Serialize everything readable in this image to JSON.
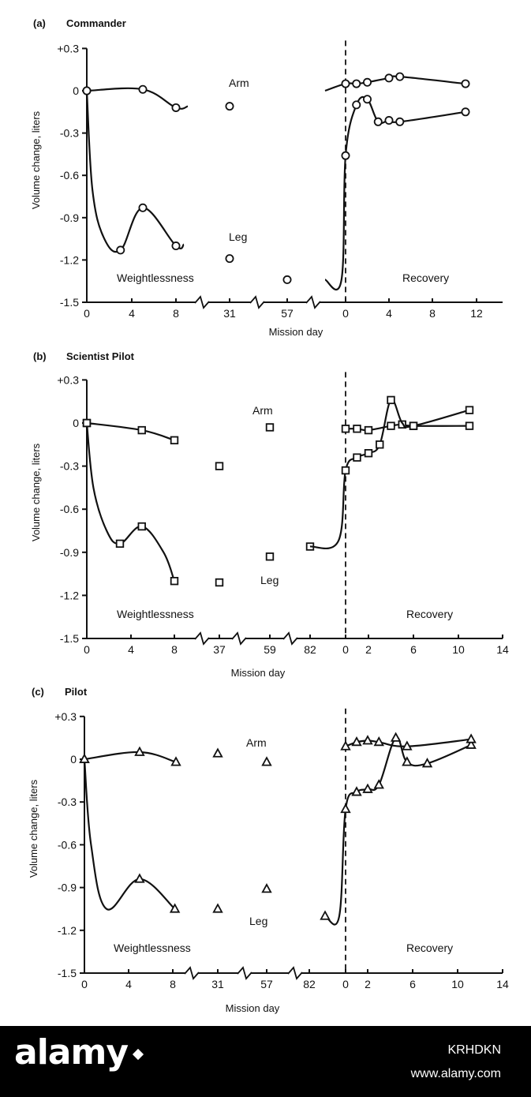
{
  "chart_data": [
    {
      "type": "line",
      "panel_label": "(a)",
      "subject": "Commander",
      "ylabel": "Volume change, liters",
      "xlabel": "Mission day",
      "ylim": [
        -1.5,
        0.3
      ],
      "yticks": [
        "+0.3",
        "0",
        "-0.3",
        "-0.6",
        "-0.9",
        "-1.2",
        "-1.5"
      ],
      "xticks": [
        "0",
        "4",
        "8",
        "31",
        "57",
        "0",
        "4",
        "8",
        "12"
      ],
      "marker": "circle",
      "annotations": {
        "arm": "Arm",
        "leg": "Leg",
        "left_phase": "Weightlessness",
        "right_phase": "Recovery"
      },
      "series": [
        {
          "name": "Arm",
          "phase": "weightlessness",
          "points": [
            [
              0,
              0.0
            ],
            [
              5,
              0.01
            ],
            [
              8,
              -0.12
            ],
            [
              9.5,
              -0.11
            ]
          ],
          "markers": [
            0,
            1,
            2
          ]
        },
        {
          "name": "Arm",
          "phase": "weightlessness",
          "points": [
            [
              31,
              -0.11
            ]
          ],
          "markers": [
            0
          ]
        },
        {
          "name": "Leg",
          "phase": "weightlessness",
          "points": [
            [
              0,
              0.0
            ],
            [
              0.5,
              -0.7
            ],
            [
              1.5,
              -1.04
            ],
            [
              3,
              -1.13
            ],
            [
              5,
              -0.83
            ],
            [
              8,
              -1.1
            ],
            [
              9,
              -1.09
            ]
          ],
          "markers": [
            0,
            3,
            4,
            5
          ]
        },
        {
          "name": "Leg",
          "phase": "weightlessness",
          "points": [
            [
              31,
              -1.19
            ]
          ],
          "markers": [
            0
          ]
        },
        {
          "name": "Leg",
          "phase": "weightlessness",
          "points": [
            [
              57,
              -1.34
            ]
          ],
          "markers": [
            0
          ]
        },
        {
          "name": "Arm",
          "phase": "recovery",
          "points": [
            [
              -1.5,
              0.0
            ],
            [
              0,
              0.05
            ],
            [
              1,
              0.05
            ],
            [
              2,
              0.06
            ],
            [
              4,
              0.09
            ],
            [
              5,
              0.1
            ],
            [
              11,
              0.05
            ]
          ],
          "markers": [
            1,
            2,
            3,
            4,
            5,
            6
          ]
        },
        {
          "name": "Leg",
          "phase": "recovery",
          "points": [
            [
              -1.5,
              -1.34
            ],
            [
              -0.3,
              -1.34
            ],
            [
              0,
              -0.46
            ],
            [
              1,
              -0.1
            ],
            [
              2,
              -0.06
            ],
            [
              3,
              -0.22
            ],
            [
              4,
              -0.21
            ],
            [
              5,
              -0.22
            ],
            [
              11,
              -0.15
            ]
          ],
          "markers": [
            2,
            3,
            4,
            5,
            6,
            7,
            8
          ]
        }
      ]
    },
    {
      "type": "line",
      "panel_label": "(b)",
      "subject": "Scientist Pilot",
      "ylabel": "Volume change, liters",
      "xlabel": "Mission day",
      "ylim": [
        -1.5,
        0.3
      ],
      "yticks": [
        "+0.3",
        "0",
        "-0.3",
        "-0.6",
        "-0.9",
        "-1.2",
        "-1.5"
      ],
      "xticks": [
        "0",
        "4",
        "8",
        "37",
        "59",
        "82",
        "0",
        "2",
        "6",
        "10",
        "14"
      ],
      "marker": "square",
      "annotations": {
        "arm": "Arm",
        "leg": "Leg",
        "left_phase": "Weightlessness",
        "right_phase": "Recovery"
      },
      "series": [
        {
          "name": "Arm",
          "phase": "weightlessness",
          "points": [
            [
              0,
              0.0
            ],
            [
              5,
              -0.05
            ],
            [
              8,
              -0.12
            ]
          ],
          "markers": [
            0,
            1,
            2
          ]
        },
        {
          "name": "Arm",
          "phase": "weightlessness",
          "points": [
            [
              37,
              -0.3
            ]
          ],
          "markers": [
            0
          ]
        },
        {
          "name": "Arm",
          "phase": "weightlessness",
          "points": [
            [
              59,
              -0.03
            ]
          ],
          "markers": [
            0
          ]
        },
        {
          "name": "Leg",
          "phase": "weightlessness",
          "points": [
            [
              0,
              0.0
            ],
            [
              0.6,
              -0.45
            ],
            [
              1.8,
              -0.75
            ],
            [
              3,
              -0.84
            ],
            [
              5,
              -0.72
            ],
            [
              7,
              -0.9
            ],
            [
              8,
              -1.1
            ]
          ],
          "markers": [
            0,
            3,
            4,
            6
          ]
        },
        {
          "name": "Leg",
          "phase": "weightlessness",
          "points": [
            [
              37,
              -1.11
            ]
          ],
          "markers": [
            0
          ]
        },
        {
          "name": "Leg",
          "phase": "weightlessness",
          "points": [
            [
              59,
              -0.93
            ]
          ],
          "markers": [
            0
          ]
        },
        {
          "name": "Leg",
          "phase": "weightlessness",
          "points": [
            [
              82,
              -0.86
            ]
          ],
          "markers": [
            0
          ]
        },
        {
          "name": "Arm",
          "phase": "recovery",
          "points": [
            [
              0,
              -0.04
            ],
            [
              1,
              -0.04
            ],
            [
              2,
              -0.05
            ],
            [
              4,
              -0.02
            ],
            [
              5,
              -0.01
            ],
            [
              6,
              -0.02
            ],
            [
              11,
              -0.02
            ]
          ],
          "markers": [
            0,
            1,
            2,
            3,
            4,
            5,
            6
          ]
        },
        {
          "name": "Leg",
          "phase": "recovery",
          "points": [
            [
              -2,
              -0.86
            ],
            [
              -0.4,
              -0.82
            ],
            [
              0,
              -0.33
            ],
            [
              1,
              -0.24
            ],
            [
              2,
              -0.21
            ],
            [
              3,
              -0.15
            ],
            [
              4,
              0.16
            ],
            [
              5,
              0.0
            ],
            [
              6,
              -0.02
            ],
            [
              11,
              0.09
            ]
          ],
          "markers": [
            2,
            3,
            4,
            5,
            6,
            8,
            9
          ]
        }
      ]
    },
    {
      "type": "line",
      "panel_label": "(c)",
      "subject": "Pilot",
      "ylabel": "Volume change, liters",
      "xlabel": "Mission day",
      "ylim": [
        -1.5,
        0.3
      ],
      "yticks": [
        "+0.3",
        "0",
        "-0.3",
        "-0.6",
        "-0.9",
        "-1.2",
        "-1.5"
      ],
      "xticks": [
        "0",
        "4",
        "8",
        "31",
        "57",
        "82",
        "0",
        "2",
        "6",
        "10",
        "14"
      ],
      "marker": "triangle",
      "annotations": {
        "arm": "Arm",
        "leg": "Leg",
        "left_phase": "Weightlessness",
        "right_phase": "Recovery"
      },
      "series": [
        {
          "name": "Arm",
          "phase": "weightlessness",
          "points": [
            [
              0,
              0.0
            ],
            [
              5,
              0.05
            ],
            [
              8.3,
              -0.02
            ]
          ],
          "markers": [
            0,
            1,
            2
          ]
        },
        {
          "name": "Arm",
          "phase": "weightlessness",
          "points": [
            [
              31,
              0.04
            ]
          ],
          "markers": [
            0
          ]
        },
        {
          "name": "Arm",
          "phase": "weightlessness",
          "points": [
            [
              57,
              -0.02
            ]
          ],
          "markers": [
            0
          ]
        },
        {
          "name": "Leg",
          "phase": "weightlessness",
          "points": [
            [
              0,
              0.0
            ],
            [
              0.6,
              -0.6
            ],
            [
              2,
              -1.05
            ],
            [
              5,
              -0.84
            ],
            [
              8.2,
              -1.05
            ]
          ],
          "markers": [
            0,
            3,
            4
          ]
        },
        {
          "name": "Leg",
          "phase": "weightlessness",
          "points": [
            [
              31,
              -1.05
            ]
          ],
          "markers": [
            0
          ]
        },
        {
          "name": "Leg",
          "phase": "weightlessness",
          "points": [
            [
              57,
              -0.91
            ]
          ],
          "markers": [
            0
          ]
        },
        {
          "name": "Leg",
          "phase": "recovery",
          "points": [
            [
              -4,
              -1.1
            ],
            [
              -2.2,
              -1.1
            ],
            [
              -0.5,
              -1.1
            ],
            [
              0,
              -0.35
            ],
            [
              1,
              -0.23
            ],
            [
              2,
              -0.21
            ],
            [
              3,
              -0.18
            ],
            [
              4.5,
              0.15
            ],
            [
              5.5,
              -0.02
            ],
            [
              7.3,
              -0.03
            ],
            [
              11.2,
              0.1
            ]
          ],
          "markers": [
            1,
            3,
            4,
            5,
            6,
            7,
            8,
            9,
            10
          ]
        },
        {
          "name": "Arm",
          "phase": "recovery",
          "points": [
            [
              0,
              0.09
            ],
            [
              1,
              0.12
            ],
            [
              2,
              0.13
            ],
            [
              3,
              0.12
            ],
            [
              5.5,
              0.09
            ],
            [
              11.2,
              0.14
            ]
          ],
          "markers": [
            0,
            1,
            2,
            3,
            4,
            5
          ]
        }
      ]
    }
  ],
  "branding": {
    "name": "alamy",
    "image_code": "KRHDKN",
    "url": "www.alamy.com"
  }
}
